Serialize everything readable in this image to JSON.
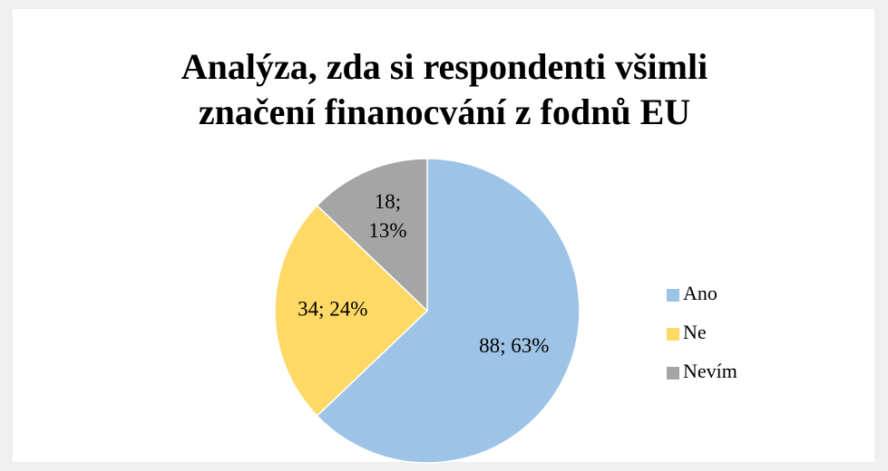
{
  "chart_data": {
    "type": "pie",
    "title": "Analýza, zda si respondenti všimli",
    "subtitle": "značení finanocvání z fodnů EU",
    "categories": [
      "Ano",
      "Ne",
      "Nevím"
    ],
    "values": [
      88,
      34,
      18
    ],
    "value_labels": [
      "88; 63%",
      "34; 24%",
      "18; 13%"
    ],
    "colors": [
      "#9dc3e6",
      "#ffd966",
      "#a5a5a5"
    ],
    "legend": "right"
  }
}
